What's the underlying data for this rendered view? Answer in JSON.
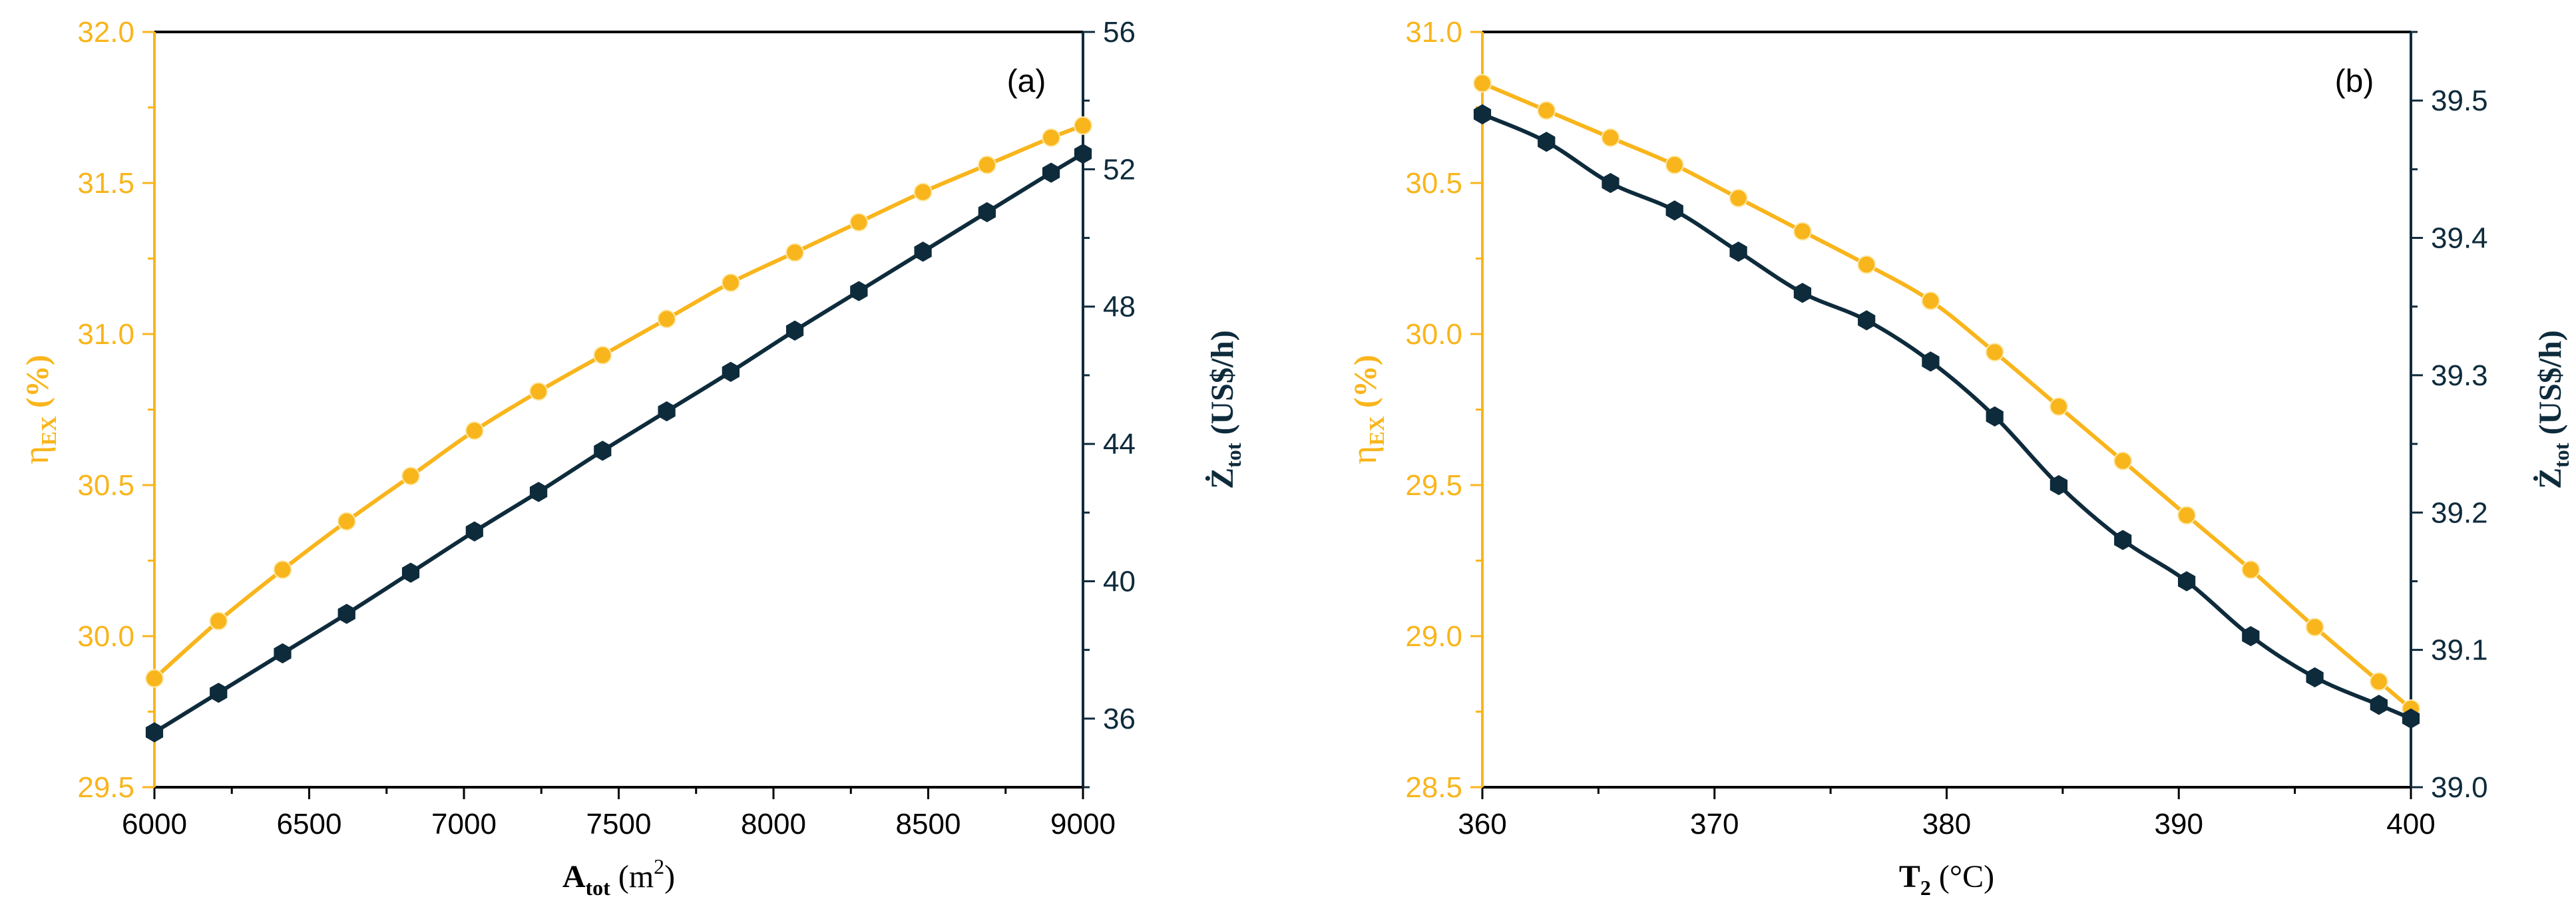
{
  "figure": {
    "colors": {
      "left_axis": "#F9B51C",
      "right_axis": "#0E2B3C",
      "frame": "#000000",
      "series_eta": "#F9B51C",
      "series_z": "#0E2B3C"
    }
  },
  "chart_data": [
    {
      "type": "line",
      "panel_label": "(a)",
      "xlabel_main": "A",
      "xlabel_sub": "tot",
      "xlabel_unit": "(m",
      "xlabel_unit_sup": "2",
      "xlabel_unit_close": ")",
      "ylabel_left_main": "η",
      "ylabel_left_sub": "EX",
      "ylabel_left_unit": "(%)",
      "ylabel_right_main": "Ż",
      "ylabel_right_sub": "tot",
      "ylabel_right_unit": "(US$/h)",
      "xlim": [
        6000,
        9000
      ],
      "xticks": [
        6000,
        6500,
        7000,
        7500,
        8000,
        8500,
        9000
      ],
      "xtick_labels": [
        "6000",
        "6500",
        "7000",
        "7500",
        "8000",
        "8500",
        "9000"
      ],
      "ylim_left": [
        29.5,
        32.0
      ],
      "yticks_left": [
        29.5,
        30.0,
        30.5,
        31.0,
        31.5,
        32.0
      ],
      "ytick_labels_left": [
        "29.5",
        "30.0",
        "30.5",
        "31.0",
        "31.5",
        "32.0"
      ],
      "ylim_right": [
        34,
        56
      ],
      "yticks_right": [
        36,
        40,
        44,
        48,
        52,
        56
      ],
      "ytick_labels_right": [
        "36",
        "40",
        "44",
        "48",
        "52",
        "56"
      ],
      "x": [
        6000,
        6207,
        6414,
        6621,
        6828,
        7034,
        7241,
        7448,
        7655,
        7862,
        8069,
        8276,
        8483,
        8690,
        8897,
        9000
      ],
      "series": [
        {
          "name": "η_EX",
          "axis": "left",
          "marker": "circle",
          "values": [
            29.86,
            30.05,
            30.22,
            30.38,
            30.53,
            30.68,
            30.81,
            30.93,
            31.05,
            31.17,
            31.27,
            31.37,
            31.47,
            31.56,
            31.65,
            31.69
          ]
        },
        {
          "name": "Ż_tot",
          "axis": "right",
          "marker": "hexagon",
          "values": [
            35.6,
            36.75,
            37.9,
            39.05,
            40.25,
            41.45,
            42.6,
            43.8,
            44.95,
            46.1,
            47.3,
            48.45,
            49.6,
            50.75,
            51.9,
            52.45
          ]
        }
      ]
    },
    {
      "type": "line",
      "panel_label": "(b)",
      "xlabel_main": "T",
      "xlabel_sub": "2",
      "xlabel_unit": "(°C)",
      "xlabel_unit_sup": "",
      "xlabel_unit_close": "",
      "ylabel_left_main": "η",
      "ylabel_left_sub": "EX",
      "ylabel_left_unit": "(%)",
      "ylabel_right_main": "Ż",
      "ylabel_right_sub": "tot",
      "ylabel_right_unit": "(US$/h)",
      "xlim": [
        360,
        400
      ],
      "xticks": [
        360,
        370,
        380,
        390,
        400
      ],
      "xtick_labels": [
        "360",
        "370",
        "380",
        "390",
        "400"
      ],
      "ylim_left": [
        28.5,
        31.0
      ],
      "yticks_left": [
        28.5,
        29.0,
        29.5,
        30.0,
        30.5,
        31.0
      ],
      "ytick_labels_left": [
        "28.5",
        "29.0",
        "29.5",
        "30.0",
        "30.5",
        "31.0"
      ],
      "ylim_right": [
        39.0,
        39.55
      ],
      "yticks_right": [
        39.0,
        39.1,
        39.2,
        39.3,
        39.4,
        39.5
      ],
      "ytick_labels_right": [
        "39.0",
        "39.1",
        "39.2",
        "39.3",
        "39.4",
        "39.5"
      ],
      "x": [
        360,
        362.76,
        365.52,
        368.28,
        371.03,
        373.79,
        376.55,
        379.31,
        382.07,
        384.83,
        387.59,
        390.34,
        393.1,
        395.86,
        398.62,
        400
      ],
      "series": [
        {
          "name": "η_EX",
          "axis": "left",
          "marker": "circle",
          "values": [
            30.83,
            30.74,
            30.65,
            30.56,
            30.45,
            30.34,
            30.23,
            30.11,
            29.94,
            29.76,
            29.58,
            29.4,
            29.22,
            29.03,
            28.85,
            28.76
          ]
        },
        {
          "name": "Ż_tot",
          "axis": "right",
          "marker": "hexagon",
          "values": [
            39.49,
            39.47,
            39.44,
            39.42,
            39.39,
            39.36,
            39.34,
            39.31,
            39.27,
            39.22,
            39.18,
            39.15,
            39.11,
            39.08,
            39.06,
            39.05
          ]
        }
      ]
    }
  ]
}
